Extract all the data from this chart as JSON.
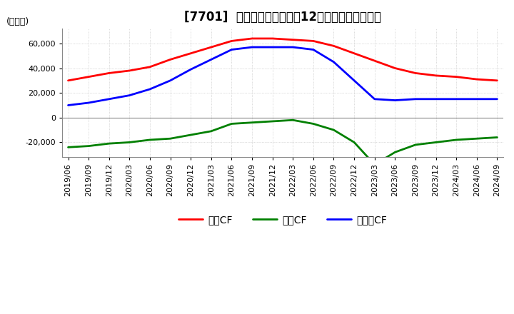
{
  "title": "[7701]  キャッシュフローの12か月移動合計の推移",
  "ylabel": "(百万円)",
  "ylim": [
    -32000,
    72000
  ],
  "yticks": [
    -20000,
    0,
    20000,
    40000,
    60000
  ],
  "dates": [
    "2019/06",
    "2019/09",
    "2019/12",
    "2020/03",
    "2020/06",
    "2020/09",
    "2020/12",
    "2021/03",
    "2021/06",
    "2021/09",
    "2021/12",
    "2022/03",
    "2022/06",
    "2022/09",
    "2022/12",
    "2023/03",
    "2023/06",
    "2023/09",
    "2023/12",
    "2024/03",
    "2024/06",
    "2024/09"
  ],
  "operating_cf": [
    30000,
    33000,
    36000,
    38000,
    41000,
    47000,
    52000,
    57000,
    62000,
    64000,
    64000,
    63000,
    62000,
    58000,
    52000,
    46000,
    40000,
    36000,
    34000,
    33000,
    31000,
    30000
  ],
  "investing_cf": [
    -24000,
    -23000,
    -21000,
    -20000,
    -18000,
    -17000,
    -14000,
    -11000,
    -5000,
    -4000,
    -3000,
    -2000,
    -5000,
    -10000,
    -20000,
    -38000,
    -28000,
    -22000,
    -20000,
    -18000,
    -17000,
    -16000
  ],
  "free_cf": [
    10000,
    12000,
    15000,
    18000,
    23000,
    30000,
    39000,
    47000,
    55000,
    57000,
    57000,
    57000,
    55000,
    45000,
    30000,
    15000,
    14000,
    15000,
    15000,
    15000,
    15000,
    15000
  ],
  "operating_color": "#ff0000",
  "investing_color": "#008000",
  "free_color": "#0000ff",
  "background_color": "#ffffff",
  "grid_color": "#aaaaaa",
  "title_fontsize": 12,
  "label_fontsize": 9,
  "tick_fontsize": 8,
  "line_width": 2.0,
  "legend_labels": [
    "営業CF",
    "投資CF",
    "フリーCF"
  ]
}
